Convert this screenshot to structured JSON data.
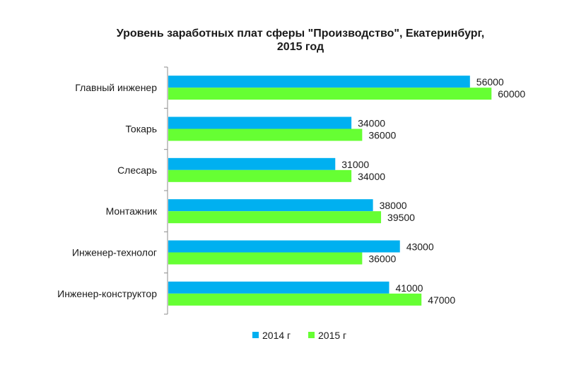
{
  "chart_data": {
    "type": "bar",
    "orientation": "horizontal",
    "title_lines": [
      "Уровень заработных плат сферы \"Производство\", Екатеринбург,",
      "2015 год"
    ],
    "categories": [
      "Главный инженер",
      "Токарь",
      "Слесарь",
      "Монтажник",
      "Инженер-технолог",
      "Инженер-конструктор"
    ],
    "series": [
      {
        "name": "2014 г",
        "color": "#00B0F0",
        "values": [
          56000,
          34000,
          31000,
          38000,
          43000,
          41000
        ]
      },
      {
        "name": "2015 г",
        "color": "#66FF33",
        "values": [
          60000,
          36000,
          34000,
          39500,
          36000,
          47000
        ]
      }
    ],
    "xlim": [
      0,
      66000
    ],
    "grid": false,
    "legend_position": "bottom"
  }
}
